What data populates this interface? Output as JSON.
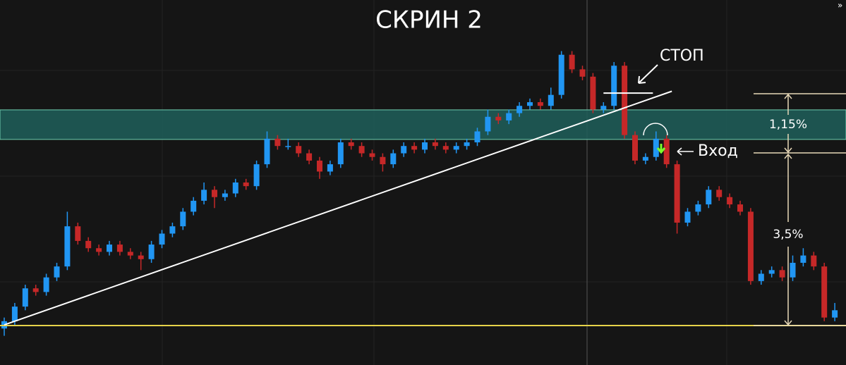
{
  "chart_data": {
    "type": "candlestick",
    "title": "СКРИН 2",
    "up_color": "#2196f3",
    "down_color": "#c62828",
    "ylim": [
      0,
      100
    ],
    "xlim": [
      0,
      80
    ],
    "open": [
      10,
      12,
      16,
      21,
      20,
      24,
      27,
      38,
      34,
      32,
      31,
      33,
      31,
      30,
      29,
      33,
      36,
      38,
      42,
      45,
      48,
      46,
      47,
      50,
      49,
      55,
      62,
      60,
      60,
      58,
      56,
      53,
      55,
      61,
      60,
      58,
      57,
      55,
      58,
      60,
      59,
      61,
      60,
      59,
      60,
      61,
      64,
      68,
      67,
      69,
      71,
      72,
      71,
      74,
      85,
      81,
      79,
      70,
      71,
      82,
      63,
      56,
      57,
      62,
      55,
      39,
      42,
      44,
      48,
      46,
      44,
      42,
      23,
      25,
      26,
      24,
      28,
      30,
      27,
      13
    ],
    "high": [
      13,
      17,
      22,
      22,
      25,
      28,
      42,
      39,
      35,
      33,
      34,
      34,
      32,
      31,
      34,
      37,
      39,
      43,
      46,
      50,
      49,
      48,
      51,
      51,
      56,
      64,
      63,
      62,
      61,
      59,
      57,
      56,
      62,
      62,
      61,
      59,
      58,
      59,
      61,
      61,
      62,
      62,
      61,
      61,
      62,
      65,
      70,
      69,
      70,
      72,
      73,
      73,
      76,
      86,
      86,
      82,
      80,
      72,
      83,
      83,
      64,
      58,
      64,
      63,
      56,
      43,
      45,
      49,
      49,
      47,
      45,
      43,
      26,
      27,
      27,
      30,
      32,
      31,
      28,
      17
    ],
    "low": [
      8,
      11,
      15,
      19,
      19,
      23,
      26,
      33,
      31,
      30,
      30,
      30,
      29,
      26,
      28,
      32,
      35,
      37,
      41,
      44,
      43,
      45,
      46,
      48,
      48,
      54,
      59,
      59,
      57,
      55,
      51,
      52,
      54,
      59,
      57,
      56,
      53,
      54,
      57,
      58,
      58,
      59,
      58,
      58,
      59,
      60,
      63,
      66,
      66,
      68,
      70,
      70,
      70,
      73,
      80,
      78,
      69,
      69,
      70,
      62,
      55,
      55,
      56,
      54,
      36,
      38,
      41,
      43,
      45,
      43,
      41,
      22,
      22,
      24,
      23,
      23,
      27,
      26,
      12,
      12
    ],
    "close": [
      12,
      16,
      21,
      20,
      24,
      27,
      38,
      34,
      32,
      31,
      33,
      31,
      30,
      29,
      33,
      36,
      38,
      42,
      45,
      48,
      46,
      47,
      50,
      49,
      55,
      62,
      60,
      60,
      58,
      56,
      53,
      55,
      61,
      60,
      58,
      57,
      55,
      58,
      60,
      59,
      61,
      60,
      59,
      60,
      61,
      64,
      68,
      67,
      69,
      71,
      72,
      71,
      74,
      85,
      81,
      79,
      70,
      71,
      82,
      63,
      56,
      57,
      62,
      55,
      39,
      42,
      44,
      48,
      46,
      44,
      42,
      23,
      25,
      26,
      24,
      28,
      30,
      27,
      13,
      15
    ],
    "zone": {
      "ylim": [
        61.8,
        69.9
      ],
      "color": "#1f5f5a"
    },
    "support_level": {
      "value": 10.8,
      "color": "#e6d34a"
    },
    "trend_line": {
      "x": [
        0,
        63.5
      ],
      "y": [
        11,
        75
      ],
      "color": "#ffffff"
    },
    "stop_level": {
      "value": 74.5,
      "x": [
        57,
        61.7
      ],
      "color": "#ffffff"
    },
    "annotations": {
      "stop": "СТОП",
      "entry": "Вход",
      "upper_move": "1,15%",
      "lower_move": "3,5%"
    }
  }
}
